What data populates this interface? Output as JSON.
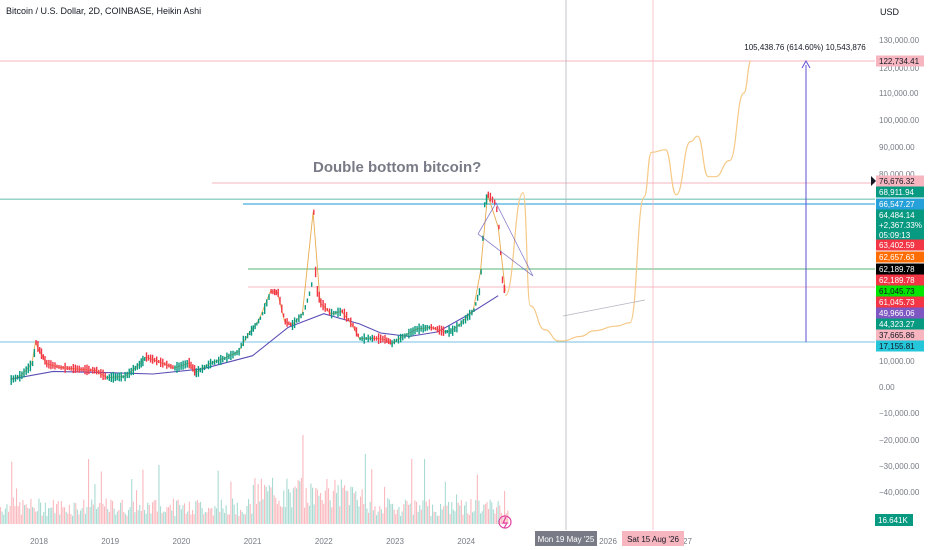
{
  "header": {
    "title": "Bitcoin / U.S. Dollar, 2D, COINBASE, Heikin Ashi",
    "currency": "USD"
  },
  "annotation": {
    "text": "Double bottom bitcoin?",
    "measure_label": "105,438.76 (614.60%) 10,543,876"
  },
  "crosshair": {
    "date1": "Mon 19 May '25",
    "date2": "Sat 15 Aug '26"
  },
  "chart_data": {
    "type": "line",
    "title": "Bitcoin / U.S. Dollar, 2D, COINBASE, Heikin Ashi",
    "xlabel": "",
    "ylabel": "",
    "ylim": [
      -50000,
      135000
    ],
    "x_ticks": [
      "2018",
      "2019",
      "2020",
      "2021",
      "2022",
      "2023",
      "2024",
      "2026",
      "2027"
    ],
    "y_ticks": [
      130000,
      120000,
      110000,
      100000,
      90000,
      80000,
      10000,
      0,
      -10000,
      -20000,
      -30000,
      -40000
    ],
    "y_tick_labels": [
      "130,000.00",
      "120,000.00",
      "110,000.00",
      "100,000.00",
      "90,000.00",
      "80,000.00",
      "10,000.00",
      "0.00",
      "−10,000.00",
      "−20,000.00",
      "−30,000.00",
      "−40,000.00"
    ],
    "price_series": {
      "x": [
        2017.6,
        2017.75,
        2017.9,
        2017.95,
        2018.0,
        2018.1,
        2018.3,
        2018.5,
        2018.8,
        2018.95,
        2019.2,
        2019.4,
        2019.5,
        2019.7,
        2019.9,
        2020.1,
        2020.2,
        2020.4,
        2020.6,
        2020.8,
        2020.95,
        2021.05,
        2021.1,
        2021.25,
        2021.35,
        2021.45,
        2021.55,
        2021.7,
        2021.85,
        2021.95,
        2022.1,
        2022.25,
        2022.4,
        2022.5,
        2022.7,
        2022.85,
        2022.95,
        2023.1,
        2023.3,
        2023.5,
        2023.7,
        2023.8,
        2023.95,
        2024.1,
        2024.2,
        2024.3,
        2024.45,
        2024.55
      ],
      "values": [
        2700,
        4500,
        9000,
        17000,
        14000,
        9000,
        7500,
        7000,
        6300,
        3600,
        4000,
        8500,
        11500,
        9500,
        7300,
        9200,
        5500,
        9000,
        11000,
        13500,
        25000,
        33000,
        38000,
        58000,
        57000,
        35000,
        32000,
        42000,
        66000,
        50000,
        42000,
        44000,
        32000,
        20000,
        20500,
        19500,
        16500,
        21500,
        28500,
        30000,
        26000,
        27000,
        35000,
        45000,
        62000,
        71000,
        65000,
        58000
      ]
    },
    "volume_scale": [
      0,
      -40000
    ],
    "projection": {
      "x": [
        2024.55,
        2024.8,
        2024.9,
        2025.1,
        2025.3,
        2025.35,
        2025.6,
        2025.8,
        2026.1,
        2026.3,
        2026.5,
        2026.6,
        2026.8,
        2026.95,
        2027.15,
        2027.25,
        2027.4,
        2027.5,
        2027.7,
        2027.9,
        2028.0
      ],
      "values": [
        55000,
        72000,
        48000,
        28000,
        18000,
        18000,
        22000,
        27000,
        31000,
        34000,
        70000,
        88000,
        89000,
        71000,
        92000,
        94000,
        79000,
        79000,
        85000,
        110000,
        122734
      ]
    },
    "moving_average": {
      "x": [
        2017.6,
        2018.2,
        2019.0,
        2019.6,
        2020.3,
        2021.0,
        2021.5,
        2022.0,
        2022.5,
        2022.8,
        2023.2,
        2023.6,
        2024.0,
        2024.45
      ],
      "values": [
        3000,
        6000,
        5500,
        5000,
        7000,
        12000,
        30000,
        42000,
        33000,
        25000,
        22000,
        26000,
        40000,
        55000
      ]
    },
    "horizontal_levels": [
      {
        "value": 122734.41,
        "label": "122,734.41",
        "color": "#f28b9a"
      },
      {
        "value": 76676.32,
        "label": "76,676.32",
        "color": "#f28b9a"
      },
      {
        "value": 68911.94,
        "label": "68,911.94",
        "color": "#089981"
      },
      {
        "value": 66547.27,
        "label": "66,547.27",
        "color": "#26a0d9"
      },
      {
        "value": 62189.78,
        "label": "62,189.78",
        "color": "#089981"
      },
      {
        "value": 17155.81,
        "label": "17,155.81",
        "color": "#26a0d9"
      }
    ],
    "price_labels": [
      {
        "text": "122,734.41",
        "bg": "#f7b5bf",
        "fg": "#131722"
      },
      {
        "text": "76,676.32",
        "bg": "#f7b5bf",
        "fg": "#131722"
      },
      {
        "text": "68,911.94",
        "bg": "#089981",
        "fg": "#ffffff"
      },
      {
        "text": "66,547.27",
        "bg": "#26a0d9",
        "fg": "#ffffff"
      },
      {
        "text": "64,484.14",
        "bg": "#089981",
        "fg": "#ffffff"
      },
      {
        "text": "+2,367.33%",
        "bg": "#089981",
        "fg": "#ffffff"
      },
      {
        "text": "05:09:13",
        "bg": "#089981",
        "fg": "#ffffff"
      },
      {
        "text": "63,402.59",
        "bg": "#f23645",
        "fg": "#ffffff"
      },
      {
        "text": "62,657.63",
        "bg": "#ff6d00",
        "fg": "#ffffff"
      },
      {
        "text": "62,189.78",
        "bg": "#000000",
        "fg": "#ffffff"
      },
      {
        "text": "62,189.78",
        "bg": "#f23645",
        "fg": "#ffffff"
      },
      {
        "text": "61,045.73",
        "bg": "#00e600",
        "fg": "#131722"
      },
      {
        "text": "61,045.73",
        "bg": "#f23645",
        "fg": "#ffffff"
      },
      {
        "text": "49,966.06",
        "bg": "#7e57c2",
        "fg": "#ffffff"
      },
      {
        "text": "44,323.27",
        "bg": "#089981",
        "fg": "#ffffff"
      },
      {
        "text": "37,665.86",
        "bg": "#f7b5bf",
        "fg": "#131722"
      },
      {
        "text": "17,155.81",
        "bg": "#26c6da",
        "fg": "#131722"
      }
    ],
    "volume_label": "16.641K",
    "colors": {
      "up": "#089981",
      "down": "#f23645",
      "projection": "#f5c987",
      "moving_average": "#5b4fb5",
      "measure": "#5c4fd6"
    },
    "grid": false,
    "legend": "none"
  }
}
